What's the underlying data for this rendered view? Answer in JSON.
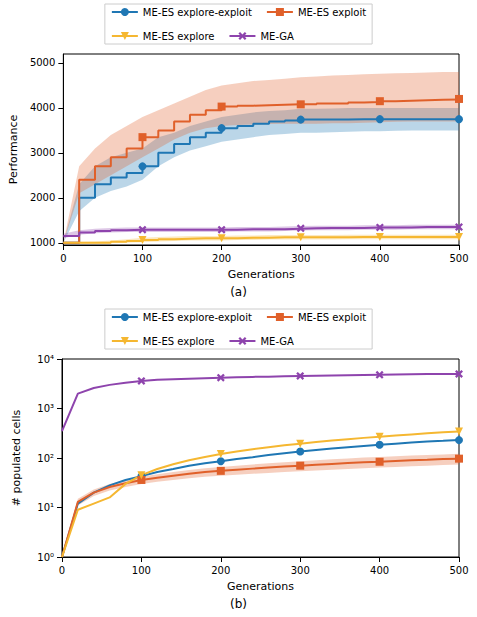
{
  "chart_data": [
    {
      "type": "line",
      "title": "(a)",
      "xlabel": "Generations",
      "ylabel": "Performance",
      "x": [
        0,
        20,
        40,
        60,
        80,
        100,
        120,
        140,
        160,
        180,
        200,
        220,
        240,
        260,
        280,
        300,
        320,
        340,
        360,
        380,
        400,
        420,
        440,
        460,
        480,
        500
      ],
      "xlim": [
        0,
        500
      ],
      "xticks": [
        0,
        100,
        200,
        300,
        400,
        500
      ],
      "ylim": [
        950,
        5200
      ],
      "yticks": [
        1000,
        2000,
        3000,
        4000,
        5000
      ],
      "grid": false,
      "legend": "upper center",
      "series": [
        {
          "name": "ME-ES explore-exploit",
          "color": "#1f77b4",
          "marker": "circle",
          "line_style": "steps",
          "values": [
            1000,
            2000,
            2300,
            2450,
            2550,
            2700,
            3000,
            3200,
            3350,
            3450,
            3550,
            3600,
            3650,
            3700,
            3720,
            3740,
            3740,
            3740,
            3750,
            3750,
            3750,
            3750,
            3750,
            3750,
            3750,
            3750
          ],
          "band_lower": [
            1000,
            1700,
            2000,
            2150,
            2250,
            2400,
            2700,
            2900,
            3050,
            3150,
            3250,
            3300,
            3350,
            3400,
            3420,
            3450,
            3450,
            3460,
            3470,
            3480,
            3480,
            3490,
            3500,
            3500,
            3500,
            3500
          ],
          "band_upper": [
            1000,
            2300,
            2700,
            2900,
            3000,
            3100,
            3350,
            3450,
            3600,
            3700,
            3800,
            3850,
            3900,
            3930,
            3950,
            3980,
            3980,
            3990,
            4000,
            4000,
            4000,
            4000,
            4000,
            4000,
            4000,
            4000
          ]
        },
        {
          "name": "ME-ES exploit",
          "color": "#e0602a",
          "marker": "square",
          "line_style": "steps",
          "values": [
            1000,
            2400,
            2700,
            2900,
            3100,
            3350,
            3500,
            3700,
            3850,
            3950,
            4030,
            4050,
            4060,
            4070,
            4080,
            4080,
            4100,
            4100,
            4120,
            4130,
            4150,
            4160,
            4170,
            4180,
            4190,
            4200
          ],
          "band_lower": [
            1000,
            2100,
            2300,
            2500,
            2700,
            2900,
            3100,
            3300,
            3450,
            3550,
            3600,
            3620,
            3630,
            3640,
            3650,
            3650,
            3650,
            3660,
            3660,
            3670,
            3680,
            3690,
            3700,
            3700,
            3700,
            3700
          ],
          "band_upper": [
            1000,
            2700,
            3100,
            3400,
            3600,
            3800,
            3950,
            4100,
            4250,
            4400,
            4500,
            4550,
            4600,
            4620,
            4650,
            4680,
            4700,
            4720,
            4730,
            4750,
            4760,
            4770,
            4780,
            4790,
            4800,
            4800
          ]
        },
        {
          "name": "ME-ES explore",
          "color": "#f5b731",
          "marker": "triangle_down",
          "line_style": "steps",
          "values": [
            1000,
            1000,
            1000,
            1020,
            1040,
            1060,
            1080,
            1090,
            1100,
            1100,
            1100,
            1110,
            1110,
            1120,
            1120,
            1120,
            1120,
            1120,
            1130,
            1130,
            1130,
            1130,
            1130,
            1130,
            1130,
            1130
          ],
          "band_lower": [
            1000,
            980,
            980,
            990,
            1000,
            1010,
            1030,
            1040,
            1050,
            1050,
            1050,
            1060,
            1060,
            1070,
            1070,
            1070,
            1070,
            1070,
            1080,
            1080,
            1080,
            1080,
            1080,
            1080,
            1080,
            1080
          ],
          "band_upper": [
            1000,
            1020,
            1030,
            1050,
            1080,
            1110,
            1130,
            1140,
            1150,
            1150,
            1150,
            1160,
            1160,
            1170,
            1170,
            1170,
            1170,
            1170,
            1180,
            1180,
            1180,
            1180,
            1180,
            1180,
            1180,
            1180
          ]
        },
        {
          "name": "ME-GA",
          "color": "#8e44ad",
          "marker": "x",
          "line_style": "steps",
          "values": [
            1150,
            1230,
            1260,
            1280,
            1290,
            1290,
            1290,
            1290,
            1290,
            1290,
            1290,
            1300,
            1300,
            1300,
            1310,
            1320,
            1330,
            1330,
            1330,
            1340,
            1340,
            1340,
            1350,
            1350,
            1350,
            1350
          ],
          "band_lower": [
            1100,
            1180,
            1210,
            1230,
            1240,
            1240,
            1240,
            1240,
            1240,
            1240,
            1240,
            1250,
            1250,
            1250,
            1260,
            1270,
            1280,
            1280,
            1280,
            1290,
            1290,
            1290,
            1300,
            1300,
            1300,
            1300
          ],
          "band_upper": [
            1200,
            1280,
            1310,
            1330,
            1340,
            1340,
            1340,
            1340,
            1340,
            1340,
            1340,
            1350,
            1350,
            1350,
            1360,
            1370,
            1380,
            1380,
            1380,
            1390,
            1390,
            1390,
            1400,
            1400,
            1400,
            1400
          ]
        }
      ]
    },
    {
      "type": "line",
      "title": "(b)",
      "xlabel": "Generations",
      "ylabel": "# populated cells",
      "x": [
        0,
        20,
        40,
        60,
        80,
        100,
        120,
        140,
        160,
        180,
        200,
        220,
        240,
        260,
        280,
        300,
        320,
        340,
        360,
        380,
        400,
        420,
        440,
        460,
        480,
        500
      ],
      "xlim": [
        0,
        500
      ],
      "xticks": [
        0,
        100,
        200,
        300,
        400,
        500
      ],
      "ylim": [
        1,
        10000
      ],
      "yticks": [
        {
          "value": 1,
          "label": "10⁰"
        },
        {
          "value": 10,
          "label": "10¹"
        },
        {
          "value": 100,
          "label": "10²"
        },
        {
          "value": 1000,
          "label": "10³"
        },
        {
          "value": 10000,
          "label": "10⁴"
        }
      ],
      "log": "y",
      "grid": false,
      "legend": "upper center",
      "series": [
        {
          "name": "ME-ES explore-exploit",
          "color": "#1f77b4",
          "marker": "circle",
          "line_style": "solid",
          "values": [
            1,
            12,
            20,
            28,
            36,
            43,
            52,
            60,
            70,
            78,
            86,
            95,
            104,
            115,
            125,
            135,
            145,
            155,
            165,
            175,
            185,
            195,
            205,
            215,
            222,
            230
          ]
        },
        {
          "name": "ME-ES exploit",
          "color": "#e0602a",
          "marker": "square",
          "line_style": "solid",
          "values": [
            1,
            13,
            20,
            26,
            31,
            36,
            40,
            44,
            48,
            52,
            55,
            58,
            61,
            64,
            67,
            70,
            73,
            76,
            79,
            82,
            84,
            87,
            90,
            92,
            95,
            97
          ],
          "band_lower": [
            1,
            11,
            17,
            22,
            26,
            30,
            33,
            36,
            39,
            42,
            44,
            46,
            48,
            50,
            52,
            54,
            56,
            58,
            60,
            62,
            64,
            66,
            68,
            70,
            72,
            74
          ],
          "band_upper": [
            1,
            15,
            23,
            30,
            36,
            42,
            47,
            52,
            57,
            62,
            66,
            70,
            74,
            78,
            82,
            86,
            90,
            94,
            98,
            102,
            105,
            108,
            112,
            115,
            118,
            122
          ]
        },
        {
          "name": "ME-ES explore",
          "color": "#f5b731",
          "marker": "triangle_down",
          "line_style": "solid",
          "values": [
            1,
            9,
            12,
            16,
            30,
            45,
            60,
            75,
            90,
            105,
            120,
            135,
            150,
            165,
            180,
            195,
            210,
            225,
            240,
            255,
            270,
            285,
            300,
            315,
            330,
            345
          ]
        },
        {
          "name": "ME-GA",
          "color": "#8e44ad",
          "marker": "x",
          "line_style": "solid",
          "values": [
            350,
            2000,
            2600,
            3000,
            3300,
            3600,
            3800,
            3900,
            4000,
            4100,
            4200,
            4300,
            4350,
            4400,
            4500,
            4550,
            4600,
            4650,
            4700,
            4750,
            4800,
            4850,
            4900,
            4950,
            5000,
            5000
          ]
        }
      ]
    }
  ]
}
